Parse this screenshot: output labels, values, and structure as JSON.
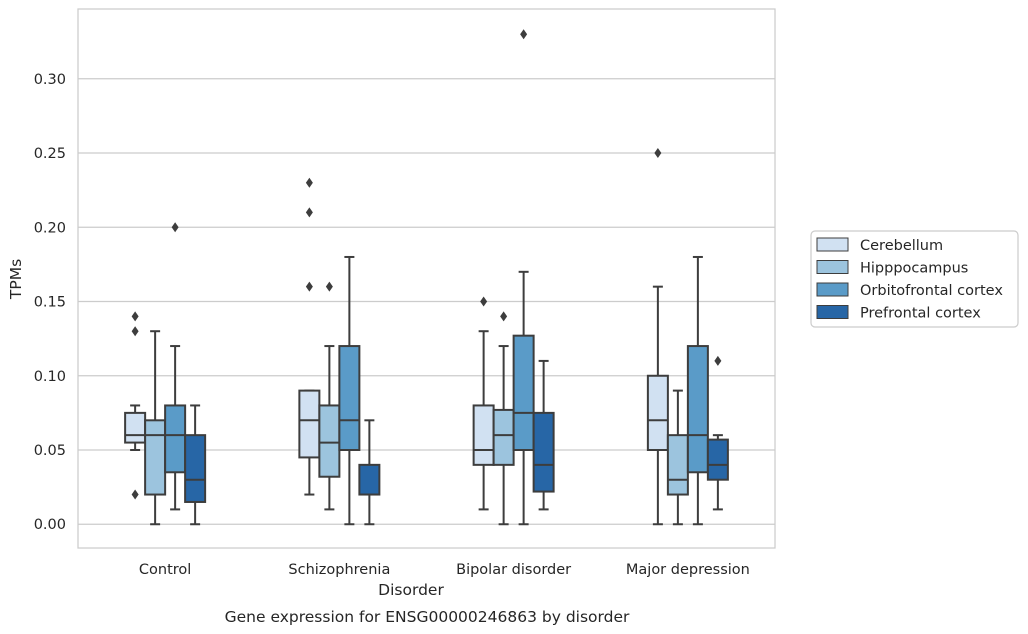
{
  "caption": "Gene expression for ENSG00000246863 by disorder",
  "chart_data": {
    "type": "box",
    "title": "",
    "xlabel": "Disorder",
    "ylabel": "TPMs",
    "ylim": [
      -0.016,
      0.347
    ],
    "yticks": [
      "0.00",
      "0.05",
      "0.10",
      "0.15",
      "0.20",
      "0.25",
      "0.30"
    ],
    "grid": "horizontal",
    "legend_position": "right",
    "categories": [
      "Control",
      "Schizophrenia",
      "Bipolar disorder",
      "Major depression"
    ],
    "series": [
      {
        "name": "Cerebellum",
        "color": "#d1e1f2",
        "boxes": [
          {
            "whisker_low": 0.05,
            "q1": 0.055,
            "median": 0.06,
            "q3": 0.075,
            "whisker_high": 0.08,
            "outliers": [
              0.02,
              0.13,
              0.14
            ]
          },
          {
            "whisker_low": 0.02,
            "q1": 0.045,
            "median": 0.07,
            "q3": 0.09,
            "whisker_high": 0.09,
            "outliers": [
              0.16,
              0.21,
              0.23
            ]
          },
          {
            "whisker_low": 0.01,
            "q1": 0.04,
            "median": 0.05,
            "q3": 0.08,
            "whisker_high": 0.13,
            "outliers": [
              0.15
            ]
          },
          {
            "whisker_low": 0.0,
            "q1": 0.05,
            "median": 0.07,
            "q3": 0.1,
            "whisker_high": 0.16,
            "outliers": [
              0.25
            ]
          }
        ]
      },
      {
        "name": "Hipppocampus",
        "color": "#9cc4de",
        "boxes": [
          {
            "whisker_low": 0.0,
            "q1": 0.02,
            "median": 0.06,
            "q3": 0.07,
            "whisker_high": 0.13,
            "outliers": []
          },
          {
            "whisker_low": 0.01,
            "q1": 0.032,
            "median": 0.055,
            "q3": 0.08,
            "whisker_high": 0.12,
            "outliers": [
              0.16
            ]
          },
          {
            "whisker_low": 0.0,
            "q1": 0.04,
            "median": 0.06,
            "q3": 0.077,
            "whisker_high": 0.12,
            "outliers": [
              0.14
            ]
          },
          {
            "whisker_low": 0.0,
            "q1": 0.02,
            "median": 0.03,
            "q3": 0.06,
            "whisker_high": 0.09,
            "outliers": []
          }
        ]
      },
      {
        "name": "Orbitofrontal cortex",
        "color": "#5a9bc8",
        "boxes": [
          {
            "whisker_low": 0.01,
            "q1": 0.035,
            "median": 0.06,
            "q3": 0.08,
            "whisker_high": 0.12,
            "outliers": [
              0.2
            ]
          },
          {
            "whisker_low": 0.0,
            "q1": 0.05,
            "median": 0.07,
            "q3": 0.12,
            "whisker_high": 0.18,
            "outliers": []
          },
          {
            "whisker_low": 0.0,
            "q1": 0.05,
            "median": 0.075,
            "q3": 0.127,
            "whisker_high": 0.17,
            "outliers": [
              0.33
            ]
          },
          {
            "whisker_low": 0.0,
            "q1": 0.035,
            "median": 0.06,
            "q3": 0.12,
            "whisker_high": 0.18,
            "outliers": []
          }
        ]
      },
      {
        "name": "Prefrontal cortex",
        "color": "#2766a6",
        "boxes": [
          {
            "whisker_low": 0.0,
            "q1": 0.015,
            "median": 0.03,
            "q3": 0.06,
            "whisker_high": 0.08,
            "outliers": []
          },
          {
            "whisker_low": 0.0,
            "q1": 0.02,
            "median": 0.02,
            "q3": 0.04,
            "whisker_high": 0.07,
            "outliers": []
          },
          {
            "whisker_low": 0.01,
            "q1": 0.022,
            "median": 0.04,
            "q3": 0.075,
            "whisker_high": 0.11,
            "outliers": []
          },
          {
            "whisker_low": 0.01,
            "q1": 0.03,
            "median": 0.04,
            "q3": 0.057,
            "whisker_high": 0.06,
            "outliers": [
              0.11
            ]
          }
        ]
      }
    ]
  }
}
